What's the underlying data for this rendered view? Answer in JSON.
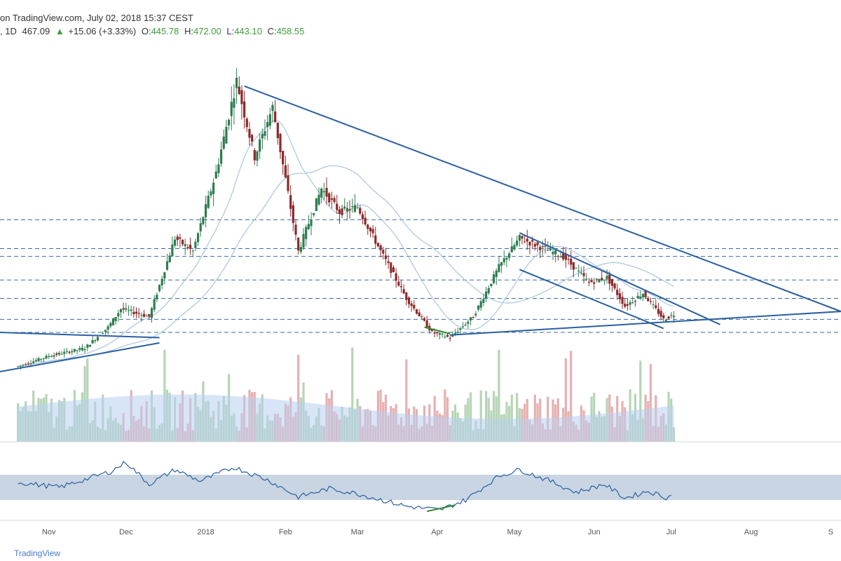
{
  "header": {
    "source": "on TradingView.com, July 02, 2018 15:37 CEST",
    "interval": ", 1D",
    "last": "467.09",
    "arrow": "▲",
    "change": "+15.06 (+3.33%)",
    "o_label": "O:",
    "o_value": "445.78",
    "h_label": "H:",
    "h_value": "472.00",
    "l_label": "L:",
    "l_value": "443.10",
    "c_label": "C:",
    "c_value": "458.55"
  },
  "footer": {
    "brand": "TradingView"
  },
  "colors": {
    "up_candle": "#2e7d4f",
    "down_candle": "#8b2a2a",
    "trendline": "#2a5fa0",
    "support_dashed": "#3a6aa8",
    "ma_line": "#aac4e0",
    "rsi_band": "#c9d5e2",
    "rsi_line": "#2a5fa0",
    "vol_up": "#b6d5b6",
    "vol_down": "#e6b0b0",
    "vol_avg": "#b8cff0",
    "divergence": "#2e8b2e"
  },
  "chart_data": {
    "type": "candlestick",
    "instrument_timeframe": "1D",
    "x_ticks": [
      "Nov",
      "Dec",
      "2018",
      "Feb",
      "Mar",
      "Apr",
      "May",
      "Jun",
      "Jul",
      "Aug",
      "S"
    ],
    "ohlc_last": {
      "open": 445.78,
      "high": 472.0,
      "low": 443.1,
      "close": 458.55
    },
    "price_path": [
      [
        "2017-10-20",
        260
      ],
      [
        "2017-11-01",
        300
      ],
      [
        "2017-11-15",
        330
      ],
      [
        "2017-11-24",
        410
      ],
      [
        "2017-11-29",
        480
      ],
      [
        "2017-12-10",
        450
      ],
      [
        "2017-12-20",
        750
      ],
      [
        "2017-12-27",
        700
      ],
      [
        "2018-01-05",
        1000
      ],
      [
        "2018-01-13",
        1350
      ],
      [
        "2018-01-20",
        1060
      ],
      [
        "2018-01-27",
        1250
      ],
      [
        "2018-02-06",
        700
      ],
      [
        "2018-02-15",
        940
      ],
      [
        "2018-02-22",
        850
      ],
      [
        "2018-03-01",
        870
      ],
      [
        "2018-03-10",
        700
      ],
      [
        "2018-03-20",
        520
      ],
      [
        "2018-03-30",
        390
      ],
      [
        "2018-04-06",
        370
      ],
      [
        "2018-04-15",
        450
      ],
      [
        "2018-04-25",
        640
      ],
      [
        "2018-05-03",
        750
      ],
      [
        "2018-05-10",
        720
      ],
      [
        "2018-05-20",
        680
      ],
      [
        "2018-05-30",
        580
      ],
      [
        "2018-06-06",
        600
      ],
      [
        "2018-06-13",
        490
      ],
      [
        "2018-06-20",
        540
      ],
      [
        "2018-06-28",
        440
      ],
      [
        "2018-07-02",
        458.55
      ]
    ],
    "horizontal_levels": [
      820,
      710,
      680,
      590,
      520,
      440,
      390
    ],
    "rsi_path": [
      [
        "2017-10-20",
        58
      ],
      [
        "2017-11-05",
        50
      ],
      [
        "2017-11-25",
        75
      ],
      [
        "2017-12-01",
        90
      ],
      [
        "2017-12-10",
        55
      ],
      [
        "2017-12-20",
        78
      ],
      [
        "2017-12-30",
        60
      ],
      [
        "2018-01-12",
        82
      ],
      [
        "2018-01-25",
        62
      ],
      [
        "2018-02-06",
        35
      ],
      [
        "2018-02-18",
        48
      ],
      [
        "2018-03-01",
        40
      ],
      [
        "2018-03-20",
        20
      ],
      [
        "2018-04-02",
        14
      ],
      [
        "2018-04-12",
        30
      ],
      [
        "2018-04-25",
        68
      ],
      [
        "2018-05-03",
        78
      ],
      [
        "2018-05-15",
        60
      ],
      [
        "2018-05-25",
        42
      ],
      [
        "2018-06-05",
        55
      ],
      [
        "2018-06-13",
        33
      ],
      [
        "2018-06-22",
        44
      ],
      [
        "2018-06-29",
        34
      ],
      [
        "2018-07-02",
        38
      ]
    ],
    "rsi_band": [
      30,
      70
    ],
    "grid": false
  }
}
